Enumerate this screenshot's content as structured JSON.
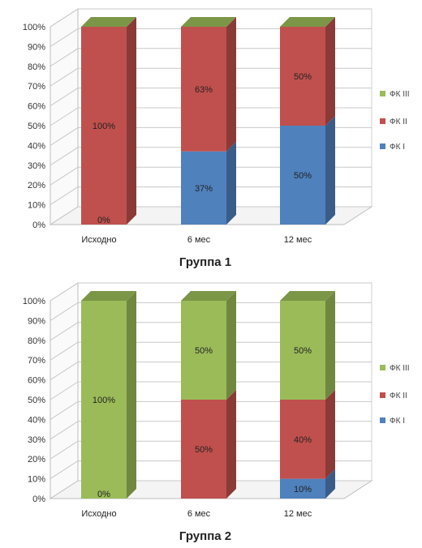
{
  "colors": {
    "fk1": "#4f81bd",
    "fk2": "#c0504d",
    "fk3": "#9bbb59"
  },
  "chart_data": [
    {
      "type": "bar",
      "stacked": true,
      "title": "Группа 1",
      "categories": [
        "Исходно",
        "6 мес",
        "12 мес"
      ],
      "yticks": [
        "0%",
        "10%",
        "20%",
        "30%",
        "40%",
        "50%",
        "60%",
        "70%",
        "80%",
        "90%",
        "100%"
      ],
      "ylim": [
        0,
        100
      ],
      "grid": true,
      "legend_position": "right",
      "series": [
        {
          "name": "ФК I",
          "color": "#4f81bd",
          "values": [
            0,
            37,
            50
          ],
          "labels": [
            "0%",
            "37%",
            "50%"
          ]
        },
        {
          "name": "ФК II",
          "color": "#c0504d",
          "values": [
            100,
            63,
            50
          ],
          "labels": [
            "100%",
            "63%",
            "50%"
          ]
        },
        {
          "name": "ФК III",
          "color": "#9bbb59",
          "values": [
            0,
            0,
            0
          ],
          "labels": [
            "",
            "",
            ""
          ]
        }
      ],
      "legend_order": [
        "ФК III",
        "ФК II",
        "ФК I"
      ]
    },
    {
      "type": "bar",
      "stacked": true,
      "title": "Группа 2",
      "categories": [
        "Исходно",
        "6 мес",
        "12 мес"
      ],
      "yticks": [
        "0%",
        "10%",
        "20%",
        "30%",
        "40%",
        "50%",
        "60%",
        "70%",
        "80%",
        "90%",
        "100%"
      ],
      "ylim": [
        0,
        100
      ],
      "grid": true,
      "legend_position": "right",
      "series": [
        {
          "name": "ФК I",
          "color": "#4f81bd",
          "values": [
            0,
            0,
            10
          ],
          "labels": [
            "",
            "",
            "10%"
          ]
        },
        {
          "name": "ФК II",
          "color": "#c0504d",
          "values": [
            0,
            50,
            40
          ],
          "labels": [
            "0%",
            "50%",
            "40%"
          ]
        },
        {
          "name": "ФК III",
          "color": "#9bbb59",
          "values": [
            100,
            50,
            50
          ],
          "labels": [
            "100%",
            "50%",
            "50%"
          ]
        }
      ],
      "legend_order": [
        "ФК III",
        "ФК II",
        "ФК I"
      ]
    }
  ]
}
